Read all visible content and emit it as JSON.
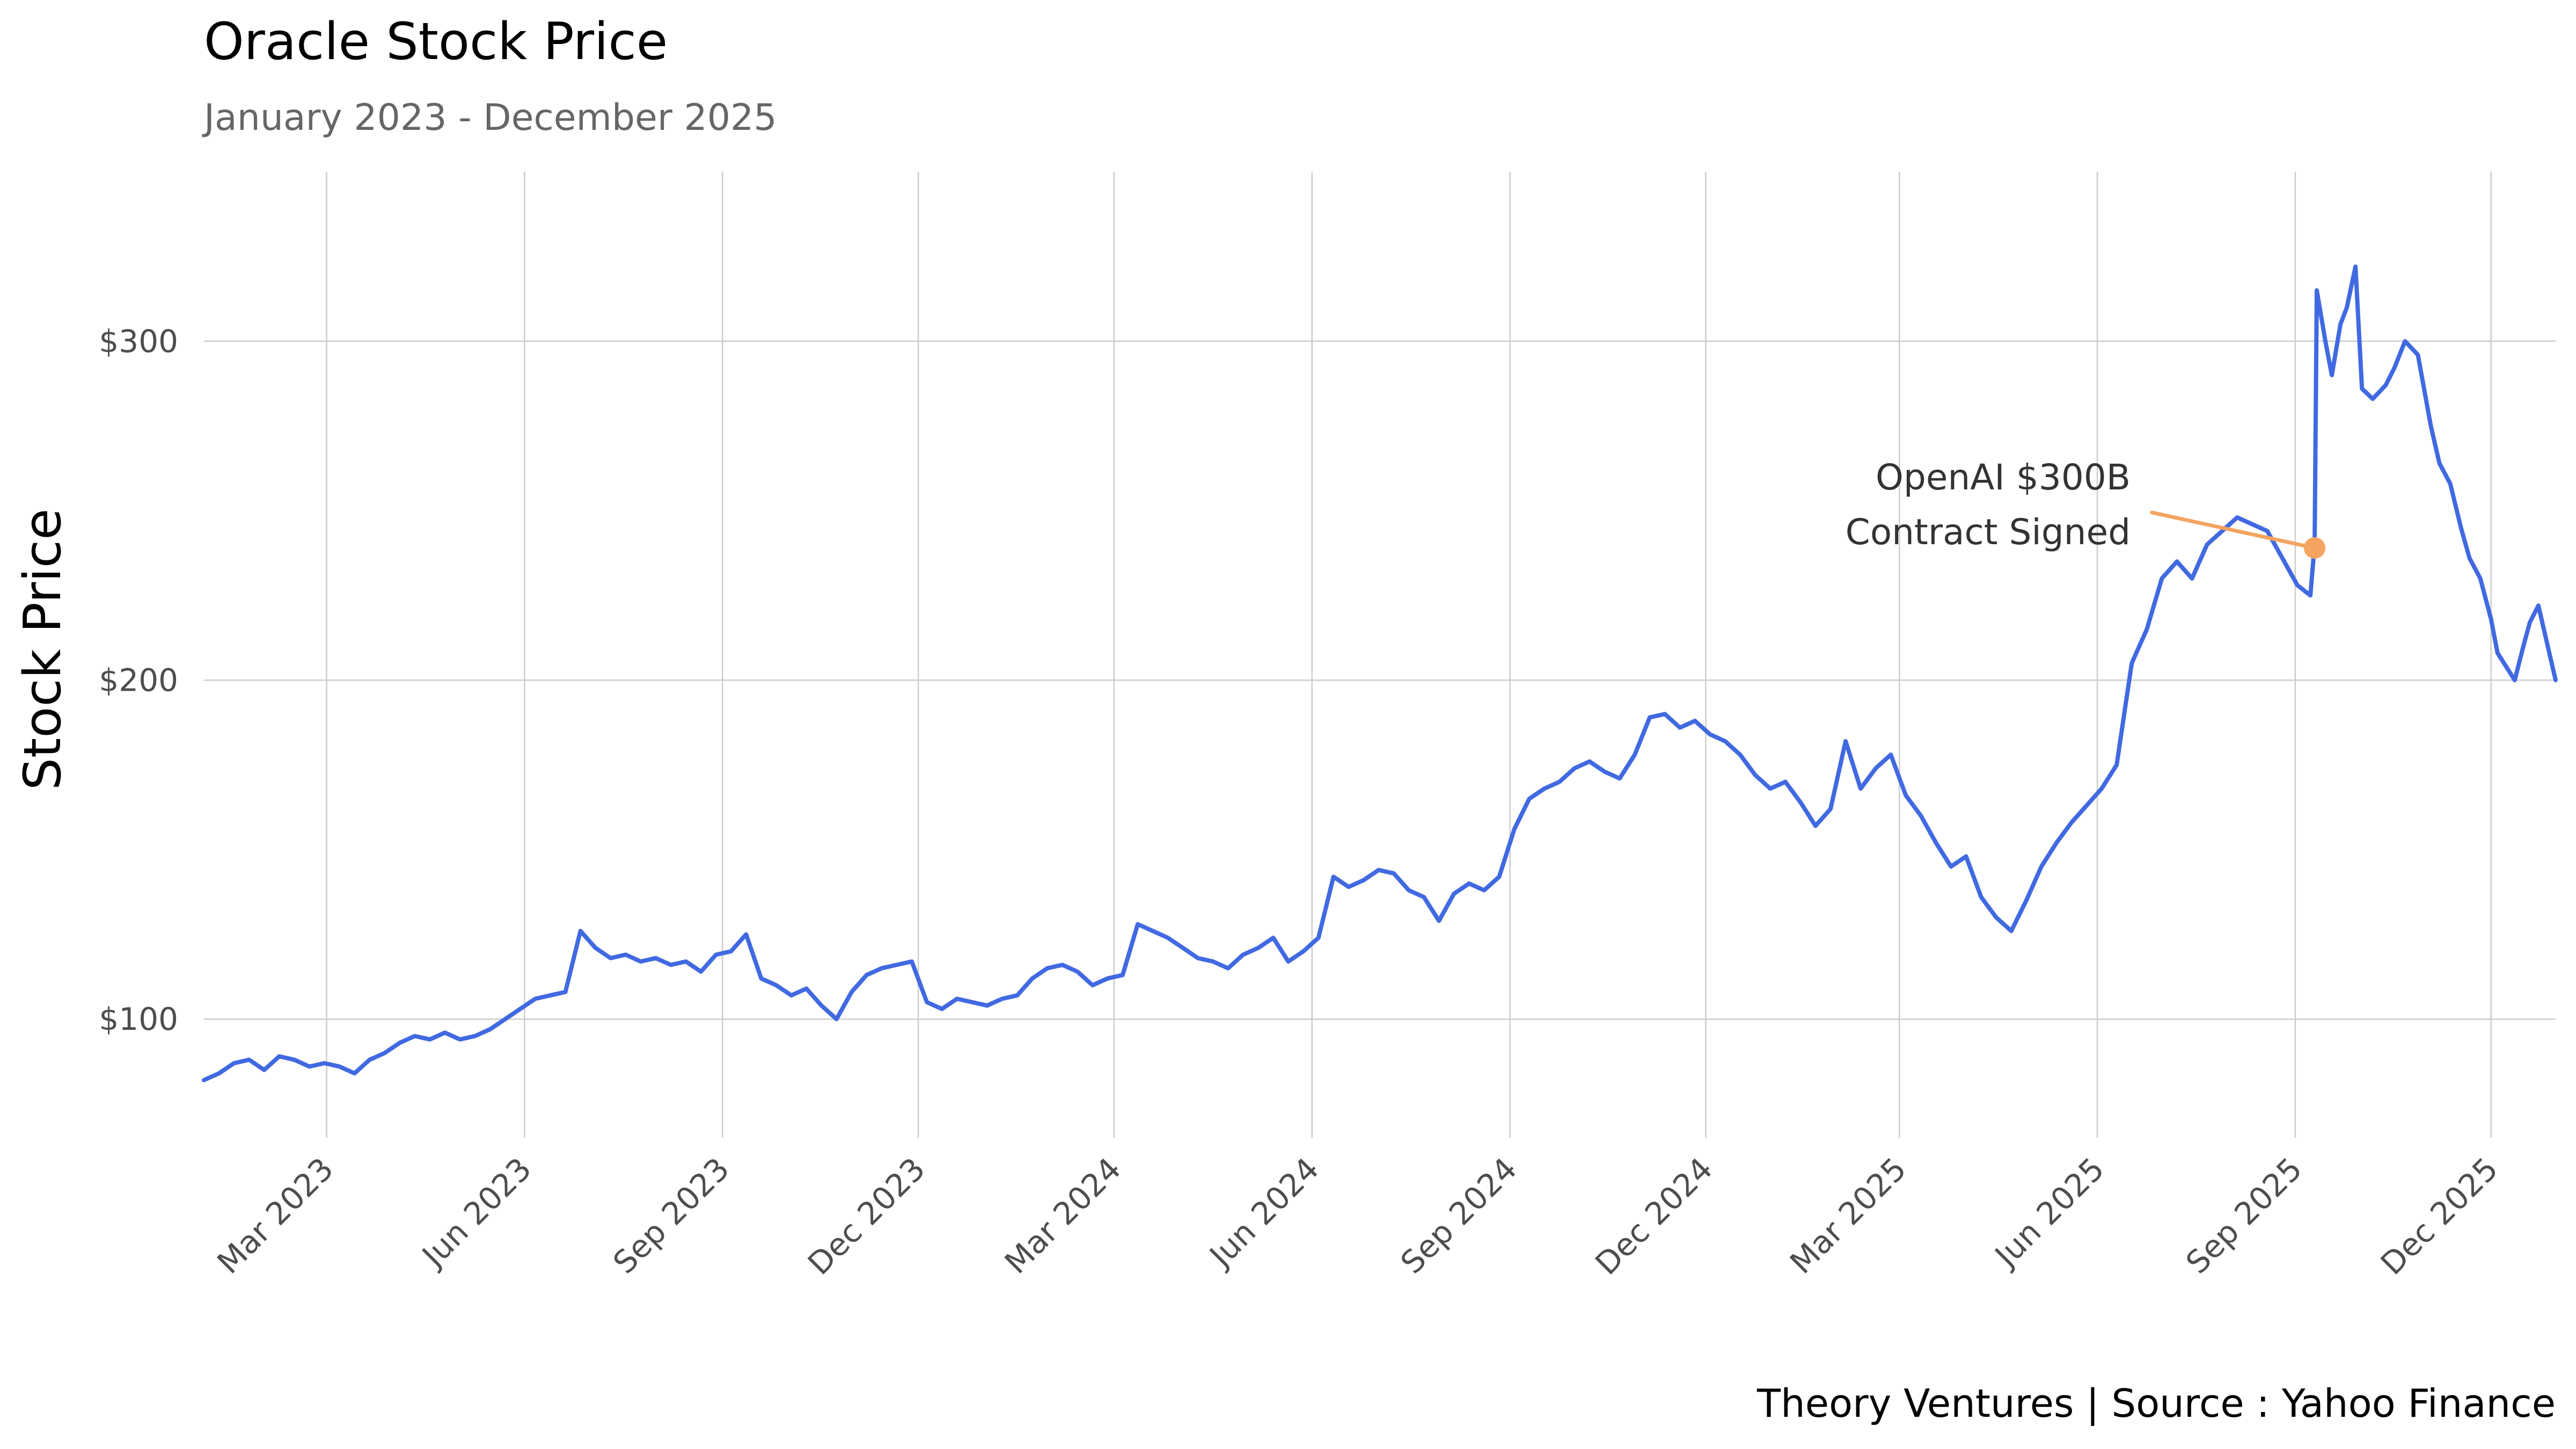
{
  "chart_data": {
    "type": "line",
    "title": "Oracle Stock Price",
    "subtitle": "January 2023 - December 2025",
    "ylabel": "Stock Price",
    "xlabel": "",
    "caption": "Theory Ventures | Source : Yahoo Finance",
    "xlim": [
      "2023-01-03",
      "2025-12-31"
    ],
    "ylim": [
      65,
      350
    ],
    "y_ticks": [
      {
        "value": 100,
        "label": "$100"
      },
      {
        "value": 200,
        "label": "$200"
      },
      {
        "value": 300,
        "label": "$300"
      }
    ],
    "x_ticks": [
      {
        "date": "2023-03-01",
        "label": "Mar 2023"
      },
      {
        "date": "2023-06-01",
        "label": "Jun 2023"
      },
      {
        "date": "2023-09-01",
        "label": "Sep 2023"
      },
      {
        "date": "2023-12-01",
        "label": "Dec 2023"
      },
      {
        "date": "2024-03-01",
        "label": "Mar 2024"
      },
      {
        "date": "2024-06-01",
        "label": "Jun 2024"
      },
      {
        "date": "2024-09-01",
        "label": "Sep 2024"
      },
      {
        "date": "2024-12-01",
        "label": "Dec 2024"
      },
      {
        "date": "2025-03-01",
        "label": "Mar 2025"
      },
      {
        "date": "2025-06-01",
        "label": "Jun 2025"
      },
      {
        "date": "2025-09-01",
        "label": "Sep 2025"
      },
      {
        "date": "2025-12-01",
        "label": "Dec 2025"
      }
    ],
    "grid": true,
    "colors": {
      "line": "#4169e1",
      "annotation": "#f4a460",
      "grid": "#cccccc"
    },
    "series": [
      {
        "x": [
          "2023-01-03",
          "2023-01-10",
          "2023-01-17",
          "2023-01-24",
          "2023-01-31",
          "2023-02-07",
          "2023-02-14",
          "2023-02-21",
          "2023-02-28",
          "2023-03-07",
          "2023-03-14",
          "2023-03-21",
          "2023-03-28",
          "2023-04-04",
          "2023-04-11",
          "2023-04-18",
          "2023-04-25",
          "2023-05-02",
          "2023-05-09",
          "2023-05-16",
          "2023-05-23",
          "2023-05-30",
          "2023-06-06",
          "2023-06-13",
          "2023-06-20",
          "2023-06-27",
          "2023-07-04",
          "2023-07-11",
          "2023-07-18",
          "2023-07-25",
          "2023-08-01",
          "2023-08-08",
          "2023-08-15",
          "2023-08-22",
          "2023-08-29",
          "2023-09-05",
          "2023-09-12",
          "2023-09-19",
          "2023-09-26",
          "2023-10-03",
          "2023-10-10",
          "2023-10-17",
          "2023-10-24",
          "2023-10-31",
          "2023-11-07",
          "2023-11-14",
          "2023-11-21",
          "2023-11-28",
          "2023-12-05",
          "2023-12-12",
          "2023-12-19",
          "2023-12-26",
          "2024-01-02",
          "2024-01-09",
          "2024-01-16",
          "2024-01-23",
          "2024-01-30",
          "2024-02-06",
          "2024-02-13",
          "2024-02-20",
          "2024-02-27",
          "2024-03-05",
          "2024-03-12",
          "2024-03-19",
          "2024-03-26",
          "2024-04-02",
          "2024-04-09",
          "2024-04-16",
          "2024-04-23",
          "2024-04-30",
          "2024-05-07",
          "2024-05-14",
          "2024-05-21",
          "2024-05-28",
          "2024-06-04",
          "2024-06-11",
          "2024-06-18",
          "2024-06-25",
          "2024-07-02",
          "2024-07-09",
          "2024-07-16",
          "2024-07-23",
          "2024-07-30",
          "2024-08-06",
          "2024-08-13",
          "2024-08-20",
          "2024-08-27",
          "2024-09-03",
          "2024-09-10",
          "2024-09-17",
          "2024-09-24",
          "2024-10-01",
          "2024-10-08",
          "2024-10-15",
          "2024-10-22",
          "2024-10-29",
          "2024-11-05",
          "2024-11-12",
          "2024-11-19",
          "2024-11-26",
          "2024-12-03",
          "2024-12-10",
          "2024-12-17",
          "2024-12-24",
          "2024-12-31",
          "2025-01-07",
          "2025-01-14",
          "2025-01-21",
          "2025-01-28",
          "2025-02-04",
          "2025-02-11",
          "2025-02-18",
          "2025-02-25",
          "2025-03-04",
          "2025-03-11",
          "2025-03-18",
          "2025-03-25",
          "2025-04-01",
          "2025-04-08",
          "2025-04-15",
          "2025-04-22",
          "2025-04-29",
          "2025-05-06",
          "2025-05-13",
          "2025-05-20",
          "2025-05-27",
          "2025-06-03",
          "2025-06-10",
          "2025-06-17",
          "2025-06-24",
          "2025-07-01",
          "2025-07-08",
          "2025-07-15",
          "2025-07-22",
          "2025-07-29",
          "2025-08-05",
          "2025-08-12",
          "2025-08-19",
          "2025-08-26",
          "2025-09-02",
          "2025-09-08",
          "2025-09-10",
          "2025-09-11",
          "2025-09-15",
          "2025-09-18",
          "2025-09-22",
          "2025-09-25",
          "2025-09-29",
          "2025-10-02",
          "2025-10-07",
          "2025-10-13",
          "2025-10-17",
          "2025-10-22",
          "2025-10-28",
          "2025-11-03",
          "2025-11-07",
          "2025-11-12",
          "2025-11-17",
          "2025-11-21",
          "2025-11-26",
          "2025-12-01",
          "2025-12-04",
          "2025-12-09",
          "2025-12-12",
          "2025-12-16",
          "2025-12-19",
          "2025-12-23",
          "2025-12-31"
        ],
        "values": [
          82,
          84,
          87,
          88,
          85,
          89,
          88,
          86,
          87,
          86,
          84,
          88,
          90,
          93,
          95,
          94,
          96,
          94,
          95,
          97,
          100,
          103,
          106,
          107,
          108,
          126,
          121,
          118,
          119,
          117,
          118,
          116,
          117,
          114,
          119,
          120,
          125,
          112,
          110,
          107,
          109,
          104,
          100,
          108,
          113,
          115,
          116,
          117,
          105,
          103,
          106,
          105,
          104,
          106,
          107,
          112,
          115,
          116,
          114,
          110,
          112,
          113,
          128,
          126,
          124,
          121,
          118,
          117,
          115,
          119,
          121,
          124,
          117,
          120,
          124,
          142,
          139,
          141,
          144,
          143,
          138,
          136,
          129,
          137,
          140,
          138,
          142,
          156,
          165,
          168,
          170,
          174,
          176,
          173,
          171,
          178,
          189,
          190,
          186,
          188,
          184,
          182,
          178,
          172,
          168,
          170,
          164,
          157,
          162,
          182,
          168,
          174,
          178,
          166,
          160,
          152,
          145,
          148,
          136,
          130,
          126,
          135,
          145,
          152,
          158,
          163,
          168,
          175,
          205,
          215,
          230,
          235,
          230,
          240,
          244,
          248,
          246,
          244,
          236,
          228,
          225,
          240,
          315,
          300,
          290,
          305,
          310,
          322,
          286,
          283,
          287,
          292,
          300,
          296,
          275,
          264,
          258,
          245,
          236,
          230,
          218,
          208,
          203,
          200,
          210,
          217,
          222,
          200
        ]
      }
    ],
    "annotation": {
      "line1": "OpenAI $300B",
      "line2": "Contract Signed",
      "x": "2025-09-10",
      "y": 239
    }
  }
}
